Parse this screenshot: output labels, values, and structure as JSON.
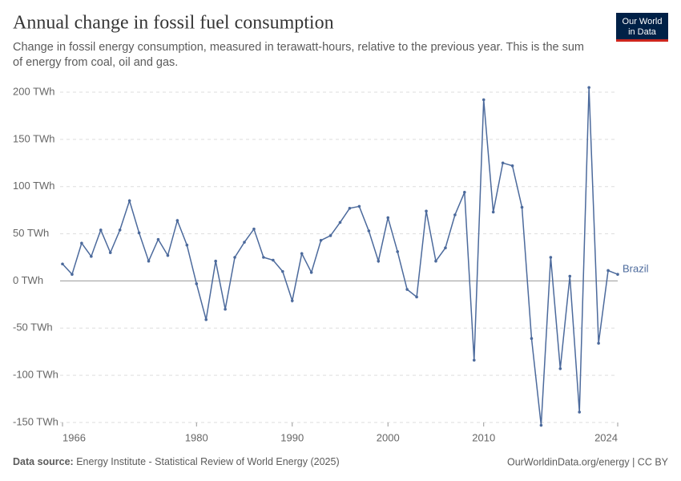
{
  "chart_data": {
    "type": "line",
    "title": "Annual change in fossil fuel consumption",
    "subtitle": "Change in fossil energy consumption, measured in terawatt-hours, relative to the previous year. This is the sum of energy from coal, oil and gas.",
    "logo": [
      "Our World",
      "in Data"
    ],
    "source_label": "Data source:",
    "source": "Energy Institute - Statistical Review of World Energy (2025)",
    "credit": "OurWorldinData.org/energy | CC BY",
    "x": [
      1966,
      1967,
      1968,
      1969,
      1970,
      1971,
      1972,
      1973,
      1974,
      1975,
      1976,
      1977,
      1978,
      1979,
      1980,
      1981,
      1982,
      1983,
      1984,
      1985,
      1986,
      1987,
      1988,
      1989,
      1990,
      1991,
      1992,
      1993,
      1994,
      1995,
      1996,
      1997,
      1998,
      1999,
      2000,
      2001,
      2002,
      2003,
      2004,
      2005,
      2006,
      2007,
      2008,
      2009,
      2010,
      2011,
      2012,
      2013,
      2014,
      2015,
      2016,
      2017,
      2018,
      2019,
      2020,
      2021,
      2022,
      2023,
      2024
    ],
    "series": [
      {
        "name": "Brazil",
        "color": "#4c6a9c",
        "values": [
          18,
          7,
          40,
          26,
          54,
          30,
          54,
          85,
          51,
          21,
          44,
          27,
          64,
          38,
          -3,
          -41,
          21,
          -30,
          25,
          41,
          55,
          25,
          22,
          10,
          -21,
          29,
          9,
          43,
          48,
          62,
          77,
          79,
          53,
          21,
          67,
          31,
          -9,
          -17,
          74,
          21,
          35,
          70,
          94,
          -84,
          192,
          73,
          125,
          122,
          78,
          -61,
          -153,
          25,
          -93,
          5,
          -139,
          205,
          -66,
          11,
          7
        ]
      }
    ],
    "xlim": [
      1966,
      2024
    ],
    "xticks": [
      1966,
      1980,
      1990,
      2000,
      2010,
      2024
    ],
    "ylim": [
      -150,
      200
    ],
    "yticks": [
      {
        "value": -150,
        "label": "-150 TWh"
      },
      {
        "value": -100,
        "label": "-100 TWh"
      },
      {
        "value": -50,
        "label": "-50 TWh"
      },
      {
        "value": 0,
        "label": "0 TWh"
      },
      {
        "value": 50,
        "label": "50 TWh"
      },
      {
        "value": 100,
        "label": "100 TWh"
      },
      {
        "value": 150,
        "label": "150 TWh"
      },
      {
        "value": 200,
        "label": "200 TWh"
      }
    ],
    "grid": true
  }
}
